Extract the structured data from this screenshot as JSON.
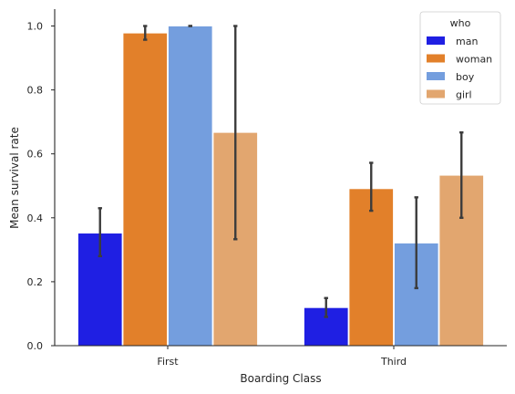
{
  "chart_data": {
    "type": "bar",
    "title": "",
    "xlabel": "Boarding Class",
    "ylabel": "Mean survival rate",
    "ylim": [
      0,
      1.05
    ],
    "yticks": [
      0.0,
      0.2,
      0.4,
      0.6,
      0.8,
      1.0
    ],
    "ytick_labels": [
      "0.0",
      "0.2",
      "0.4",
      "0.6",
      "0.8",
      "1.0"
    ],
    "categories": [
      "First",
      "Third"
    ],
    "legend": {
      "title": "who",
      "location": "top-right"
    },
    "series": [
      {
        "name": "man",
        "color": "#1f1fe3",
        "values": [
          0.352,
          0.119
        ],
        "ci_low": [
          0.28,
          0.09
        ],
        "ci_high": [
          0.43,
          0.149
        ]
      },
      {
        "name": "woman",
        "color": "#e2802a",
        "values": [
          0.978,
          0.491
        ],
        "ci_low": [
          0.957,
          0.422
        ],
        "ci_high": [
          1.0,
          0.572
        ]
      },
      {
        "name": "boy",
        "color": "#749ede",
        "values": [
          1.0,
          0.321
        ],
        "ci_low": [
          1.0,
          0.18
        ],
        "ci_high": [
          1.0,
          0.464
        ]
      },
      {
        "name": "girl",
        "color": "#e2a66f",
        "values": [
          0.667,
          0.533
        ],
        "ci_low": [
          0.333,
          0.4
        ],
        "ci_high": [
          1.0,
          0.667
        ]
      }
    ]
  }
}
